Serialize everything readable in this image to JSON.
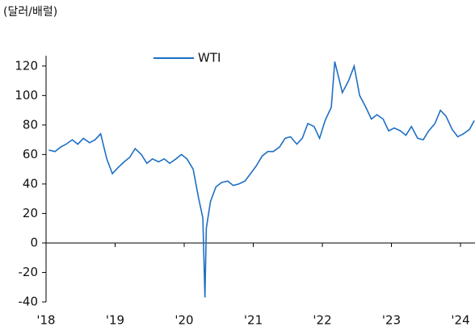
{
  "chart_data": {
    "type": "line",
    "title": "(달러/배럴)",
    "x": [
      2018.04,
      2018.13,
      2018.21,
      2018.29,
      2018.38,
      2018.46,
      2018.54,
      2018.63,
      2018.71,
      2018.79,
      2018.88,
      2018.96,
      2019.04,
      2019.13,
      2019.21,
      2019.29,
      2019.38,
      2019.46,
      2019.54,
      2019.63,
      2019.71,
      2019.79,
      2019.88,
      2019.96,
      2020.04,
      2020.13,
      2020.21,
      2020.27,
      2020.3,
      2020.32,
      2020.38,
      2020.46,
      2020.54,
      2020.63,
      2020.71,
      2020.79,
      2020.88,
      2020.96,
      2021.04,
      2021.13,
      2021.21,
      2021.29,
      2021.38,
      2021.46,
      2021.54,
      2021.63,
      2021.71,
      2021.79,
      2021.88,
      2021.96,
      2022.04,
      2022.13,
      2022.18,
      2022.29,
      2022.38,
      2022.46,
      2022.54,
      2022.63,
      2022.71,
      2022.79,
      2022.88,
      2022.96,
      2023.04,
      2023.13,
      2023.21,
      2023.29,
      2023.38,
      2023.46,
      2023.54,
      2023.63,
      2023.71,
      2023.79,
      2023.88,
      2023.96,
      2024.04,
      2024.13,
      2024.2
    ],
    "series": [
      {
        "name": "WTI",
        "color": "#1f6fc4",
        "values": [
          63,
          62,
          65,
          67,
          70,
          67,
          71,
          68,
          70,
          74,
          57,
          47,
          51,
          55,
          58,
          64,
          60,
          54,
          57,
          55,
          57,
          54,
          57,
          60,
          57,
          50,
          30,
          17,
          -37,
          10,
          28,
          38,
          41,
          42,
          39,
          40,
          42,
          47,
          52,
          59,
          62,
          62,
          65,
          71,
          72,
          67,
          71,
          81,
          79,
          71,
          83,
          92,
          123,
          102,
          110,
          120,
          100,
          92,
          84,
          87,
          84,
          76,
          78,
          76,
          73,
          79,
          71,
          70,
          76,
          81,
          90,
          86,
          77,
          72,
          74,
          77,
          83
        ]
      }
    ],
    "xlim": [
      2018,
      2024.21
    ],
    "xticks": [
      {
        "value": 2018,
        "label": "'18"
      },
      {
        "value": 2019,
        "label": "'19"
      },
      {
        "value": 2020,
        "label": "'20"
      },
      {
        "value": 2021,
        "label": "'21"
      },
      {
        "value": 2022,
        "label": "'22"
      },
      {
        "value": 2023,
        "label": "'23"
      },
      {
        "value": 2024,
        "label": "'24"
      }
    ],
    "ylim": [
      -40,
      127
    ],
    "yticks": [
      -40,
      -20,
      0,
      20,
      40,
      60,
      80,
      100,
      120
    ]
  }
}
